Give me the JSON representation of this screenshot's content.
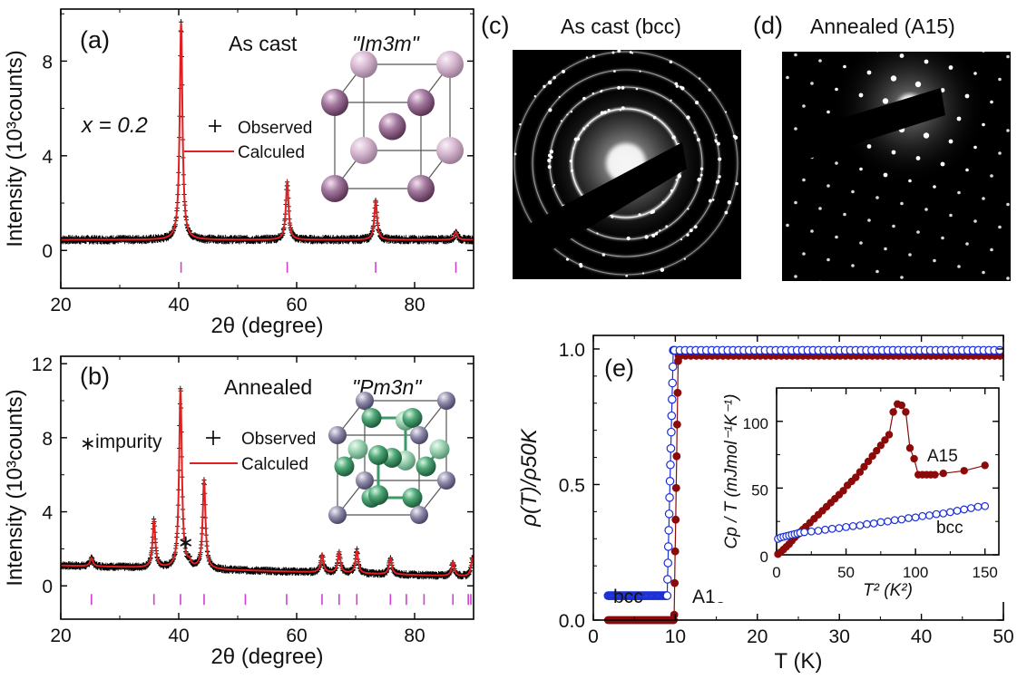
{
  "colors": {
    "observed": "#000000",
    "calculated": "#e02020",
    "bragg": "#d040d0",
    "a15": "#8b0a0a",
    "bcc": "#1b2fd6",
    "atom_bcc": "#9a6b95",
    "atom_a15": "#3a9a68",
    "atom_a15_corner": "#7e7a98"
  },
  "panels": {
    "a": {
      "label": "(a)",
      "title": "As cast",
      "space_group": "\"Im3m\"",
      "composition": "x = 0.2",
      "legend_observed": "Observed",
      "legend_calculated": "Calculed"
    },
    "b": {
      "label": "(b)",
      "title": "Annealed",
      "space_group": "\"Pm3n\"",
      "impurity": "impurity",
      "legend_observed": "Observed",
      "legend_calculated": "Calculed"
    },
    "c": {
      "label": "(c)",
      "title": "As cast (bcc)"
    },
    "d": {
      "label": "(d)",
      "title": "Annealed (A15)"
    },
    "e": {
      "label": "(e)",
      "label_bcc": "bcc",
      "label_a15": "A15",
      "inset_label_a15": "A15",
      "inset_label_bcc": "bcc"
    }
  },
  "chart_data": [
    {
      "id": "a",
      "type": "line",
      "xlabel": "2θ (degree)",
      "ylabel": "Intensity (10³counts)",
      "xlim": [
        20,
        90
      ],
      "ylim": [
        -1.6,
        10.2
      ],
      "xticks": [
        20,
        40,
        60,
        80
      ],
      "yticks": [
        0,
        4,
        8
      ],
      "background": 0.45,
      "peaks": [
        {
          "x": 40.4,
          "y": 9.6
        },
        {
          "x": 58.4,
          "y": 2.9
        },
        {
          "x": 73.4,
          "y": 2.1
        },
        {
          "x": 87.0,
          "y": 0.8
        }
      ],
      "bragg_positions": [
        40.4,
        58.4,
        73.4,
        87.0
      ],
      "series": [
        {
          "name": "Observed"
        },
        {
          "name": "Calculed"
        }
      ]
    },
    {
      "id": "b",
      "type": "line",
      "xlabel": "2θ (degree)",
      "ylabel": "Intensity (10³counts)",
      "xlim": [
        20,
        90
      ],
      "ylim": [
        -1.8,
        12.4
      ],
      "xticks": [
        20,
        40,
        60,
        80
      ],
      "yticks": [
        0,
        4,
        8,
        12
      ],
      "background_start": 1.1,
      "background_end": 0.5,
      "peaks": [
        {
          "x": 25.2,
          "y": 1.5
        },
        {
          "x": 35.8,
          "y": 3.5
        },
        {
          "x": 40.3,
          "y": 10.6
        },
        {
          "x": 44.3,
          "y": 5.7
        },
        {
          "x": 64.3,
          "y": 1.7
        },
        {
          "x": 67.2,
          "y": 1.8
        },
        {
          "x": 70.2,
          "y": 1.9
        },
        {
          "x": 75.9,
          "y": 1.5
        },
        {
          "x": 86.5,
          "y": 1.3
        },
        {
          "x": 89.8,
          "y": 1.5
        }
      ],
      "impurity_peak": {
        "x": 41.8,
        "y": 1.2
      },
      "bragg_positions": [
        25.2,
        35.8,
        40.3,
        44.3,
        51.3,
        58.3,
        64.3,
        67.2,
        70.2,
        75.9,
        78.6,
        81.6,
        86.5,
        89.1,
        90.0
      ],
      "series": [
        {
          "name": "Observed"
        },
        {
          "name": "Calculed"
        }
      ]
    },
    {
      "id": "e",
      "type": "scatter",
      "xlabel": "T (K)",
      "ylabel": "ρ(T)/ρ50K",
      "xlim": [
        0,
        50
      ],
      "ylim": [
        0,
        1.05
      ],
      "xticks": [
        0,
        10,
        20,
        30,
        40,
        50
      ],
      "yticks": [
        0.0,
        0.5,
        1.0
      ],
      "series": [
        {
          "name": "bcc",
          "Tc": 9.6,
          "residual": 0.09,
          "normal": 0.995
        },
        {
          "name": "A15",
          "Tc": 10.1,
          "residual": 0.0,
          "normal": 0.975
        }
      ]
    },
    {
      "id": "e-inset",
      "type": "scatter",
      "xlabel": "T² (K²)",
      "ylabel": "Cp / T (mJmol⁻¹K⁻¹)",
      "xlim": [
        0,
        160
      ],
      "ylim": [
        0,
        125
      ],
      "xticks": [
        0,
        50,
        100,
        150
      ],
      "yticks": [
        0,
        50,
        100
      ],
      "series": [
        {
          "name": "A15",
          "x": [
            1,
            3,
            5,
            7,
            9,
            11,
            13,
            15,
            17,
            19,
            21,
            24,
            27,
            30,
            33,
            36,
            39,
            42,
            45,
            48,
            51,
            54,
            57,
            60,
            63,
            66,
            69,
            72,
            75,
            78,
            81,
            84,
            87,
            90,
            93,
            96,
            99,
            102,
            105,
            108,
            111,
            114,
            120,
            135,
            150
          ],
          "y": [
            0.5,
            2,
            4,
            6,
            8,
            10.5,
            13,
            15,
            17,
            19,
            21,
            24,
            27,
            30,
            33,
            36,
            39,
            42,
            45,
            48,
            52,
            55,
            58,
            62,
            66,
            70,
            74,
            78,
            82,
            86,
            90,
            107,
            113,
            112,
            107,
            80,
            72,
            60,
            60,
            60,
            60,
            60,
            61,
            63,
            67
          ]
        },
        {
          "name": "bcc",
          "x": [
            1,
            3,
            5,
            7,
            9,
            11,
            13,
            15,
            17,
            20,
            25,
            30,
            35,
            40,
            45,
            50,
            55,
            60,
            65,
            70,
            75,
            80,
            85,
            90,
            95,
            100,
            105,
            110,
            115,
            120,
            125,
            130,
            135,
            140,
            145,
            150
          ],
          "y": [
            12,
            13,
            13.5,
            14,
            14.5,
            15,
            15.5,
            16,
            16.5,
            17,
            17.5,
            18,
            18.8,
            19.5,
            20,
            20.8,
            21.5,
            22,
            23,
            23.5,
            24.5,
            25,
            26,
            26.5,
            27.5,
            28,
            29,
            29.5,
            30.5,
            31,
            32,
            33,
            34,
            35,
            36,
            36.5
          ]
        }
      ]
    }
  ]
}
